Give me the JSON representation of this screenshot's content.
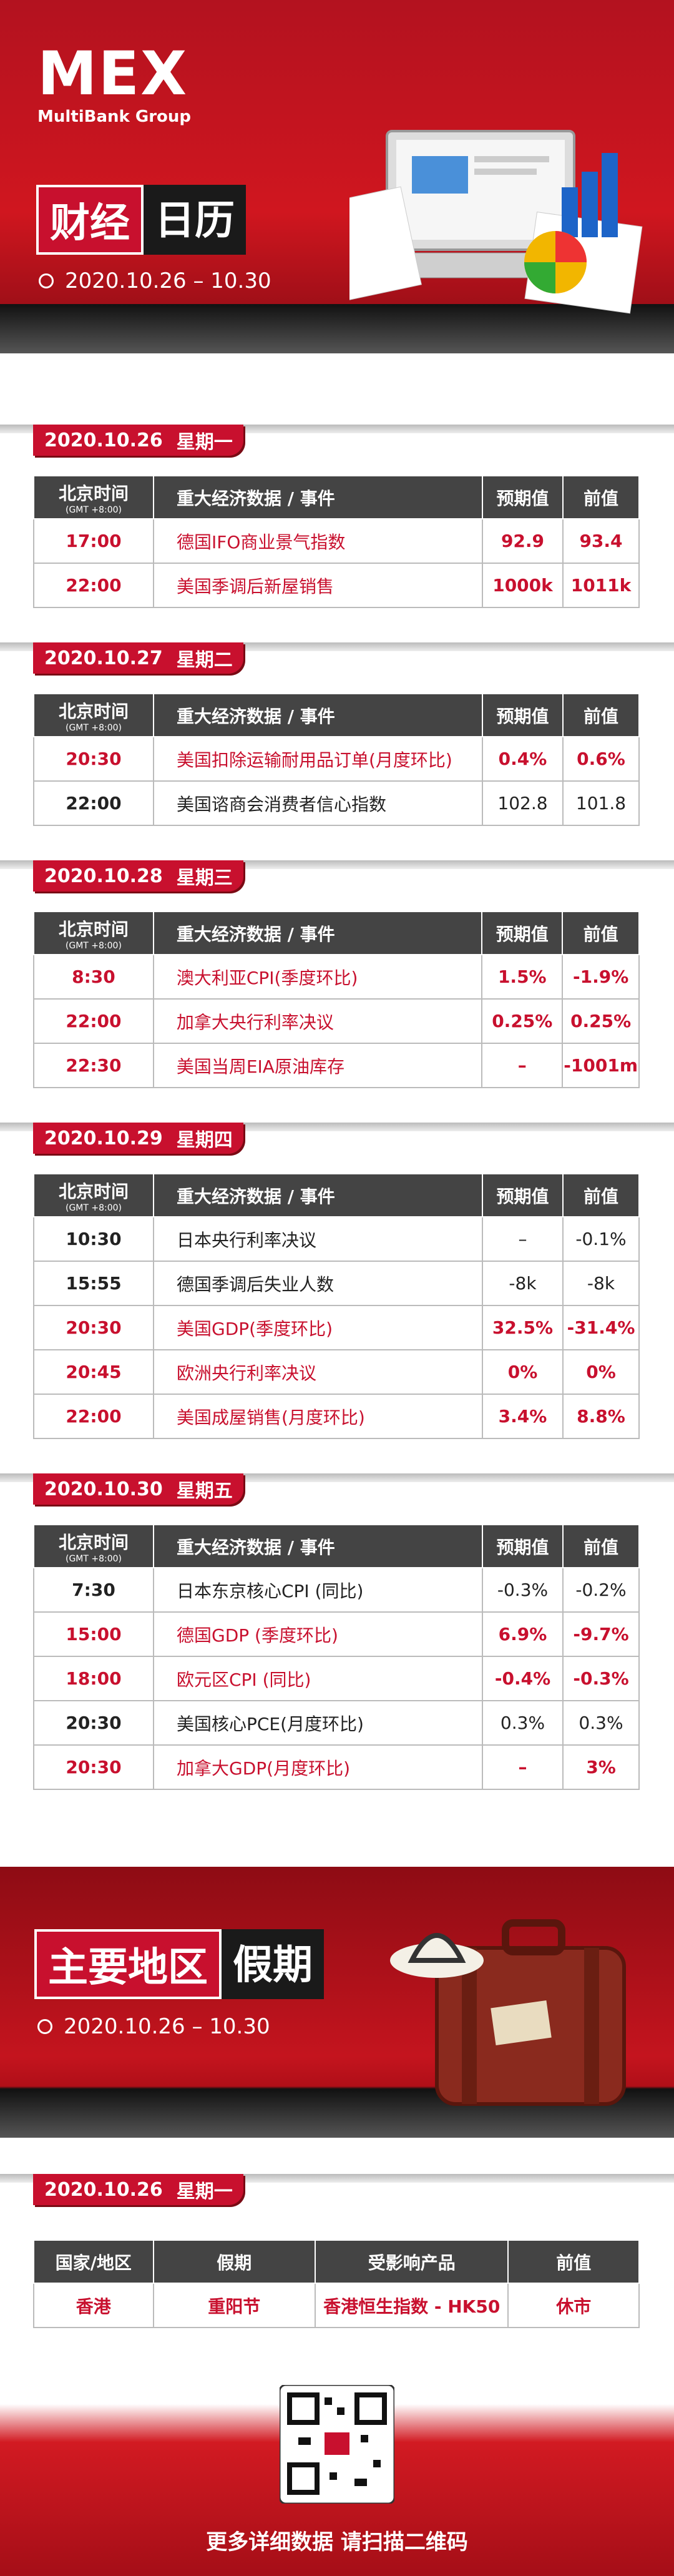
{
  "header": {
    "logo": "MEX",
    "logo_sub": "MultiBank Group",
    "title_a": "财经",
    "title_b": "日历",
    "date_range": "2020.10.26 – 10.30"
  },
  "columns": {
    "time": "北京时间",
    "tz": "(GMT +8:00)",
    "event": "重大经济数据 / 事件",
    "forecast": "预期值",
    "previous": "前值"
  },
  "days": [
    {
      "date": "2020.10.26",
      "weekday": "星期一",
      "rows": [
        {
          "time": "17:00",
          "event": "德国IFO商业景气指数",
          "forecast": "92.9",
          "previous": "93.4",
          "highlight": true
        },
        {
          "time": "22:00",
          "event": "美国季调后新屋销售",
          "forecast": "1000k",
          "previous": "1011k",
          "highlight": true
        }
      ]
    },
    {
      "date": "2020.10.27",
      "weekday": "星期二",
      "rows": [
        {
          "time": "20:30",
          "event": "美国扣除运输耐用品订单(月度环比)",
          "forecast": "0.4%",
          "previous": "0.6%",
          "highlight": true
        },
        {
          "time": "22:00",
          "event": "美国谘商会消费者信心指数",
          "forecast": "102.8",
          "previous": "101.8",
          "highlight": false
        }
      ]
    },
    {
      "date": "2020.10.28",
      "weekday": "星期三",
      "rows": [
        {
          "time": "8:30",
          "event": "澳大利亚CPI(季度环比)",
          "forecast": "1.5%",
          "previous": "-1.9%",
          "highlight": true
        },
        {
          "time": "22:00",
          "event": "加拿大央行利率决议",
          "forecast": "0.25%",
          "previous": "0.25%",
          "highlight": true
        },
        {
          "time": "22:30",
          "event": "美国当周EIA原油库存",
          "forecast": "–",
          "previous": "-1001m",
          "highlight": true
        }
      ]
    },
    {
      "date": "2020.10.29",
      "weekday": "星期四",
      "rows": [
        {
          "time": "10:30",
          "event": "日本央行利率决议",
          "forecast": "–",
          "previous": "-0.1%",
          "highlight": false
        },
        {
          "time": "15:55",
          "event": "德国季调后失业人数",
          "forecast": "-8k",
          "previous": "-8k",
          "highlight": false
        },
        {
          "time": "20:30",
          "event": "美国GDP(季度环比)",
          "forecast": "32.5%",
          "previous": "-31.4%",
          "highlight": true
        },
        {
          "time": "20:45",
          "event": "欧洲央行利率决议",
          "forecast": "0%",
          "previous": "0%",
          "highlight": true
        },
        {
          "time": "22:00",
          "event": "美国成屋销售(月度环比)",
          "forecast": "3.4%",
          "previous": "8.8%",
          "highlight": true
        }
      ]
    },
    {
      "date": "2020.10.30",
      "weekday": "星期五",
      "rows": [
        {
          "time": "7:30",
          "event": "日本东京核心CPI (同比)",
          "forecast": "-0.3%",
          "previous": "-0.2%",
          "highlight": false
        },
        {
          "time": "15:00",
          "event": "德国GDP (季度环比)",
          "forecast": "6.9%",
          "previous": "-9.7%",
          "highlight": true
        },
        {
          "time": "18:00",
          "event": "欧元区CPI (同比)",
          "forecast": "-0.4%",
          "previous": "-0.3%",
          "highlight": true
        },
        {
          "time": "20:30",
          "event": "美国核心PCE(月度环比)",
          "forecast": "0.3%",
          "previous": "0.3%",
          "highlight": false
        },
        {
          "time": "20:30",
          "event": "加拿大GDP(月度环比)",
          "forecast": "–",
          "previous": "3%",
          "highlight": true
        }
      ]
    }
  ],
  "holiday": {
    "title_a": "主要地区",
    "title_b": "假期",
    "date_range": "2020.10.26 – 10.30",
    "date": "2020.10.26",
    "weekday": "星期一",
    "columns": [
      "国家/地区",
      "假期",
      "受影响产品",
      "前值"
    ],
    "rows": [
      [
        "香港",
        "重阳节",
        "香港恒生指数 - HK50",
        "休市"
      ]
    ]
  },
  "footer": {
    "text": "更多详细数据 请扫描二维码"
  }
}
